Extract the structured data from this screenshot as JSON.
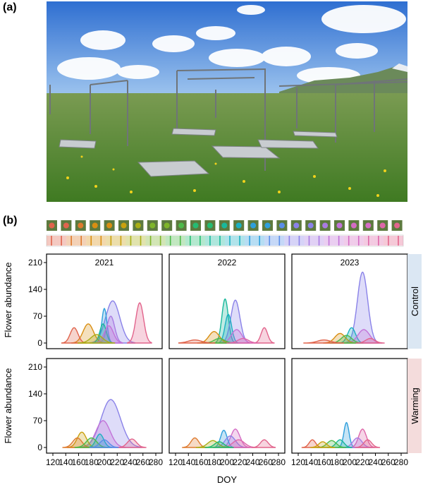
{
  "panel_a_label": "(a)",
  "panel_b_label": "(b)",
  "photo": {
    "subject": "alpine meadow warming experiment with open-top chamber frames and solar shelters"
  },
  "colors": {
    "sky": "#3d7fd6",
    "grass": "#5f8f2f",
    "strip_border": "#888888",
    "control_strip": "#dbe7f3",
    "warming_strip": "#f4dcdc"
  },
  "species_palette": [
    "#E0644C",
    "#DE7A2E",
    "#D98E12",
    "#C9A10E",
    "#A8AE15",
    "#7FB52A",
    "#4DBA4A",
    "#25BC72",
    "#18B89B",
    "#1CB0C2",
    "#2E9FDC",
    "#5A8EE8",
    "#8A82E8",
    "#A97BE2",
    "#C273D8",
    "#D46CC4",
    "#DE67A9",
    "#E2648C"
  ],
  "y_axis_label": "Flower abundance",
  "x_axis_label": "DOY",
  "chart_data": {
    "type": "area",
    "xlim": [
      120,
      280
    ],
    "ylim": [
      0,
      210
    ],
    "x_ticks": [
      "120",
      "140",
      "160",
      "180",
      "200",
      "220",
      "240",
      "260",
      "280"
    ],
    "y_ticks": [
      "0",
      "70",
      "140",
      "210"
    ],
    "columns": [
      "2021",
      "2022",
      "2023"
    ],
    "rows": [
      "Control",
      "Warming"
    ],
    "panels": [
      {
        "year": "2021",
        "treatment": "Control",
        "curves": [
          {
            "color_index": 0,
            "peak_x": 153,
            "height": 40,
            "width": 6
          },
          {
            "color_index": 2,
            "peak_x": 175,
            "height": 50,
            "width": 8
          },
          {
            "color_index": 4,
            "peak_x": 188,
            "height": 22,
            "width": 9
          },
          {
            "color_index": 8,
            "peak_x": 198,
            "height": 50,
            "width": 5
          },
          {
            "color_index": 10,
            "peak_x": 200,
            "height": 90,
            "width": 4
          },
          {
            "color_index": 12,
            "peak_x": 213,
            "height": 110,
            "width": 11
          },
          {
            "color_index": 13,
            "peak_x": 210,
            "height": 70,
            "width": 6
          },
          {
            "color_index": 14,
            "peak_x": 207,
            "height": 45,
            "width": 7
          },
          {
            "color_index": 17,
            "peak_x": 255,
            "height": 105,
            "width": 6
          }
        ]
      },
      {
        "year": "2022",
        "treatment": "Control",
        "curves": [
          {
            "color_index": 0,
            "peak_x": 150,
            "height": 8,
            "width": 10
          },
          {
            "color_index": 2,
            "peak_x": 180,
            "height": 30,
            "width": 8
          },
          {
            "color_index": 6,
            "peak_x": 188,
            "height": 12,
            "width": 8
          },
          {
            "color_index": 8,
            "peak_x": 197,
            "height": 115,
            "width": 5
          },
          {
            "color_index": 9,
            "peak_x": 202,
            "height": 75,
            "width": 5
          },
          {
            "color_index": 12,
            "peak_x": 213,
            "height": 112,
            "width": 7
          },
          {
            "color_index": 14,
            "peak_x": 215,
            "height": 35,
            "width": 8
          },
          {
            "color_index": 16,
            "peak_x": 225,
            "height": 12,
            "width": 8
          },
          {
            "color_index": 17,
            "peak_x": 258,
            "height": 40,
            "width": 5
          }
        ]
      },
      {
        "year": "2023",
        "treatment": "Control",
        "curves": [
          {
            "color_index": 0,
            "peak_x": 160,
            "height": 8,
            "width": 10
          },
          {
            "color_index": 2,
            "peak_x": 185,
            "height": 25,
            "width": 8
          },
          {
            "color_index": 6,
            "peak_x": 195,
            "height": 20,
            "width": 8
          },
          {
            "color_index": 9,
            "peak_x": 203,
            "height": 40,
            "width": 6
          },
          {
            "color_index": 12,
            "peak_x": 220,
            "height": 185,
            "width": 8
          },
          {
            "color_index": 14,
            "peak_x": 222,
            "height": 35,
            "width": 9
          },
          {
            "color_index": 17,
            "peak_x": 232,
            "height": 12,
            "width": 7
          }
        ]
      },
      {
        "year": "2021",
        "treatment": "Warming",
        "curves": [
          {
            "color_index": 1,
            "peak_x": 158,
            "height": 25,
            "width": 7
          },
          {
            "color_index": 3,
            "peak_x": 165,
            "height": 40,
            "width": 7
          },
          {
            "color_index": 6,
            "peak_x": 180,
            "height": 25,
            "width": 8
          },
          {
            "color_index": 9,
            "peak_x": 193,
            "height": 35,
            "width": 6
          },
          {
            "color_index": 11,
            "peak_x": 200,
            "height": 20,
            "width": 7
          },
          {
            "color_index": 12,
            "peak_x": 210,
            "height": 125,
            "width": 15
          },
          {
            "color_index": 14,
            "peak_x": 198,
            "height": 70,
            "width": 11
          },
          {
            "color_index": 17,
            "peak_x": 243,
            "height": 22,
            "width": 7
          }
        ]
      },
      {
        "year": "2022",
        "treatment": "Warming",
        "curves": [
          {
            "color_index": 1,
            "peak_x": 150,
            "height": 25,
            "width": 6
          },
          {
            "color_index": 4,
            "peak_x": 178,
            "height": 18,
            "width": 8
          },
          {
            "color_index": 7,
            "peak_x": 188,
            "height": 15,
            "width": 7
          },
          {
            "color_index": 10,
            "peak_x": 195,
            "height": 45,
            "width": 5
          },
          {
            "color_index": 12,
            "peak_x": 205,
            "height": 30,
            "width": 8
          },
          {
            "color_index": 15,
            "peak_x": 213,
            "height": 48,
            "width": 7
          },
          {
            "color_index": 16,
            "peak_x": 218,
            "height": 20,
            "width": 9
          },
          {
            "color_index": 17,
            "peak_x": 258,
            "height": 20,
            "width": 6
          }
        ]
      },
      {
        "year": "2023",
        "treatment": "Warming",
        "curves": [
          {
            "color_index": 0,
            "peak_x": 142,
            "height": 20,
            "width": 5
          },
          {
            "color_index": 3,
            "peak_x": 158,
            "height": 15,
            "width": 6
          },
          {
            "color_index": 6,
            "peak_x": 172,
            "height": 18,
            "width": 7
          },
          {
            "color_index": 8,
            "peak_x": 185,
            "height": 20,
            "width": 6
          },
          {
            "color_index": 10,
            "peak_x": 195,
            "height": 65,
            "width": 4
          },
          {
            "color_index": 13,
            "peak_x": 212,
            "height": 25,
            "width": 7
          },
          {
            "color_index": 16,
            "peak_x": 220,
            "height": 48,
            "width": 6
          },
          {
            "color_index": 17,
            "peak_x": 228,
            "height": 20,
            "width": 6
          }
        ]
      }
    ]
  }
}
